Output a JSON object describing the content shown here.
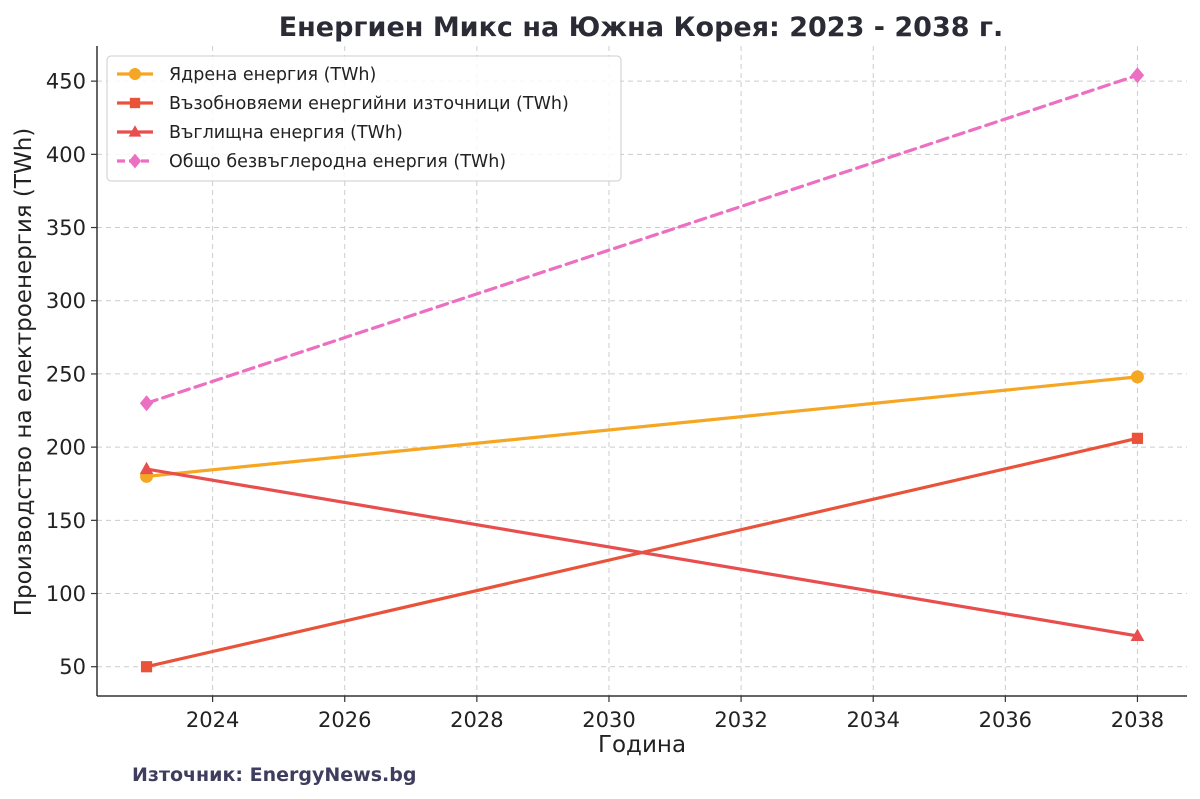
{
  "chart_data": {
    "type": "line",
    "title": "Енергиен Микс на Южна Корея: 2023 - 2038 г.",
    "xlabel": "Година",
    "ylabel": "Производство на електроенергия (TWh)",
    "x": [
      2023,
      2038
    ],
    "xlim": [
      2022.25,
      2038.75
    ],
    "ylim": [
      30,
      474
    ],
    "xticks": [
      2024,
      2026,
      2028,
      2030,
      2032,
      2034,
      2036,
      2038
    ],
    "yticks": [
      50,
      100,
      150,
      200,
      250,
      300,
      350,
      400,
      450
    ],
    "grid": true,
    "legend_position": "top-left",
    "series": [
      {
        "name": "Ядрена енергия (TWh)",
        "values": [
          180,
          248
        ],
        "color": "#f5a623",
        "marker": "circle",
        "dash": "solid"
      },
      {
        "name": "Възобновяеми енергийни източници (TWh)",
        "values": [
          50,
          206
        ],
        "color": "#e8533a",
        "marker": "square",
        "dash": "solid"
      },
      {
        "name": "Въглищна енергия (TWh)",
        "values": [
          185,
          71
        ],
        "color": "#e84e4e",
        "marker": "triangle",
        "dash": "solid"
      },
      {
        "name": "Общо безвъглеродна енергия (TWh)",
        "values": [
          230,
          454
        ],
        "color": "#ec6fc2",
        "marker": "diamond",
        "dash": "dashed"
      }
    ]
  },
  "source": "Източник: EnergyNews.bg"
}
